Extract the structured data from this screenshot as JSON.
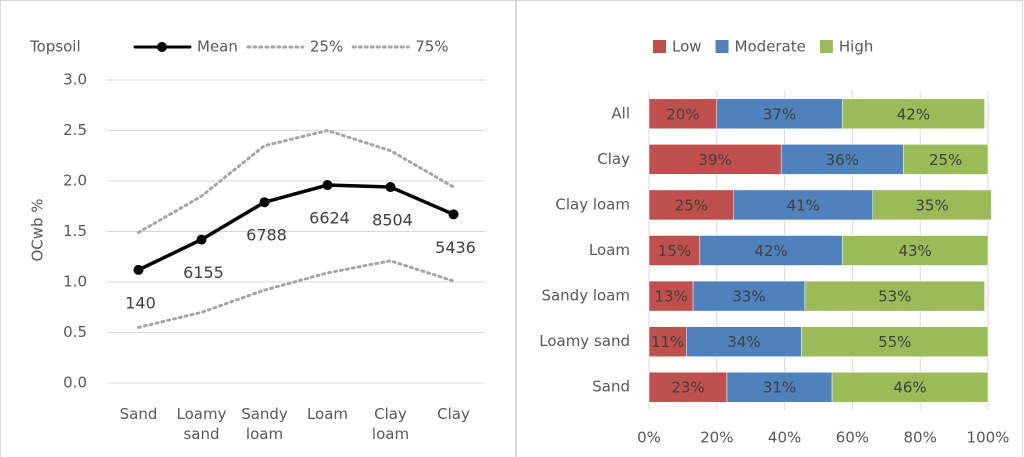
{
  "chart_data": [
    {
      "type": "line",
      "title": "Topsoil",
      "y_label": "OCwb %",
      "categories": [
        "Sand",
        "Loamy sand",
        "Sandy loam",
        "Loam",
        "Clay loam",
        "Clay"
      ],
      "series": [
        {
          "name": "Mean",
          "color": "#000000",
          "line_style": "solid",
          "marker": "circle",
          "values": [
            1.12,
            1.42,
            1.79,
            1.96,
            1.94,
            1.67
          ]
        },
        {
          "name": "25%",
          "color": "#a6a6a6",
          "line_style": "dotted",
          "values": [
            0.55,
            0.7,
            0.92,
            1.09,
            1.21,
            1.01
          ]
        },
        {
          "name": "75%",
          "color": "#a6a6a6",
          "line_style": "dotted",
          "values": [
            1.49,
            1.85,
            2.35,
            2.5,
            2.3,
            1.94
          ]
        }
      ],
      "sample_counts": [
        140,
        6155,
        6788,
        6624,
        8504,
        5436
      ],
      "ylim": [
        0,
        3
      ],
      "yticks": [
        {
          "value": 0,
          "label": "0.0"
        },
        {
          "value": 0.5,
          "label": "0.5"
        },
        {
          "value": 1,
          "label": "1.0"
        },
        {
          "value": 1.5,
          "label": "1.5"
        },
        {
          "value": 2,
          "label": "2.0"
        },
        {
          "value": 2.5,
          "label": "2.5"
        },
        {
          "value": 3,
          "label": "3.0"
        }
      ],
      "grid": true
    },
    {
      "type": "bar",
      "orientation": "horizontal",
      "stacked": true,
      "categories": [
        "All",
        "Clay",
        "Clay loam",
        "Loam",
        "Sandy loam",
        "Loamy sand",
        "Sand"
      ],
      "series": [
        {
          "name": "Low",
          "color": "#c0504d",
          "values": [
            20,
            39,
            25,
            15,
            13,
            11,
            23
          ],
          "value_labels": [
            "20%",
            "39%",
            "25%",
            "15%",
            "13%",
            "11%",
            "23%"
          ]
        },
        {
          "name": "Moderate",
          "color": "#4f81bd",
          "values": [
            37,
            36,
            41,
            42,
            33,
            34,
            31
          ],
          "value_labels": [
            "37%",
            "36%",
            "41%",
            "42%",
            "33%",
            "34%",
            "31%"
          ]
        },
        {
          "name": "High",
          "color": "#9bbb59",
          "values": [
            42,
            25,
            35,
            43,
            53,
            55,
            46
          ],
          "value_labels": [
            "42%",
            "25%",
            "35%",
            "43%",
            "53%",
            "55%",
            "46%"
          ]
        }
      ],
      "xlim": [
        0,
        100
      ],
      "xticks": [
        {
          "value": 0,
          "label": "0%"
        },
        {
          "value": 20,
          "label": "20%"
        },
        {
          "value": 40,
          "label": "40%"
        },
        {
          "value": 60,
          "label": "60%"
        },
        {
          "value": 80,
          "label": "80%"
        },
        {
          "value": 100,
          "label": "100%"
        }
      ],
      "grid": true
    }
  ]
}
